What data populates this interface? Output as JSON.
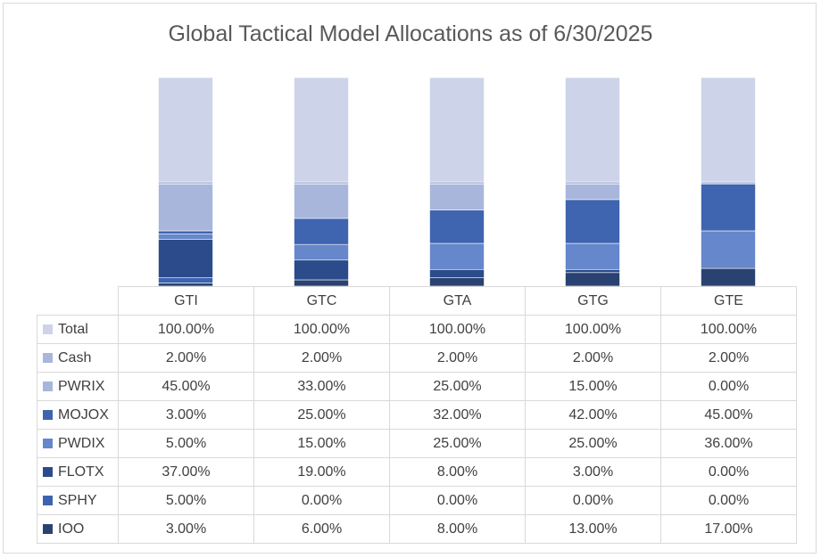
{
  "chart_data": {
    "type": "bar",
    "stacked": true,
    "title": "Global Tactical Model Allocations as of 6/30/2025",
    "categories": [
      "GTI",
      "GTC",
      "GTA",
      "GTG",
      "GTE"
    ],
    "series": [
      {
        "name": "Total",
        "color": "#cdd4e9",
        "values": [
          100,
          100,
          100,
          100,
          100
        ],
        "labels": [
          "100.00%",
          "100.00%",
          "100.00%",
          "100.00%",
          "100.00%"
        ]
      },
      {
        "name": "Cash",
        "color": "#a8b6dc",
        "values": [
          2,
          2,
          2,
          2,
          2
        ],
        "labels": [
          "2.00%",
          "2.00%",
          "2.00%",
          "2.00%",
          "2.00%"
        ]
      },
      {
        "name": "PWRIX",
        "color": "#a8b6dc",
        "values": [
          45,
          33,
          25,
          15,
          0
        ],
        "labels": [
          "45.00%",
          "33.00%",
          "25.00%",
          "15.00%",
          "0.00%"
        ]
      },
      {
        "name": "MOJOX",
        "color": "#3f64b0",
        "values": [
          3,
          25,
          32,
          42,
          45
        ],
        "labels": [
          "3.00%",
          "25.00%",
          "32.00%",
          "42.00%",
          "45.00%"
        ]
      },
      {
        "name": "PWDIX",
        "color": "#6687cb",
        "values": [
          5,
          15,
          25,
          25,
          36
        ],
        "labels": [
          "5.00%",
          "15.00%",
          "25.00%",
          "25.00%",
          "36.00%"
        ]
      },
      {
        "name": "FLOTX",
        "color": "#2c4b8a",
        "values": [
          37,
          19,
          8,
          3,
          0
        ],
        "labels": [
          "37.00%",
          "19.00%",
          "8.00%",
          "3.00%",
          "0.00%"
        ]
      },
      {
        "name": "SPHY",
        "color": "#3d63b0",
        "values": [
          5,
          0,
          0,
          0,
          0
        ],
        "labels": [
          "5.00%",
          "0.00%",
          "0.00%",
          "0.00%",
          "0.00%"
        ]
      },
      {
        "name": "IOO",
        "color": "#2a4272",
        "values": [
          3,
          6,
          8,
          13,
          17
        ],
        "labels": [
          "3.00%",
          "6.00%",
          "8.00%",
          "13.00%",
          "17.00%"
        ]
      }
    ],
    "ylim": [
      0,
      200
    ],
    "grid": false,
    "legend": "data table keys"
  }
}
